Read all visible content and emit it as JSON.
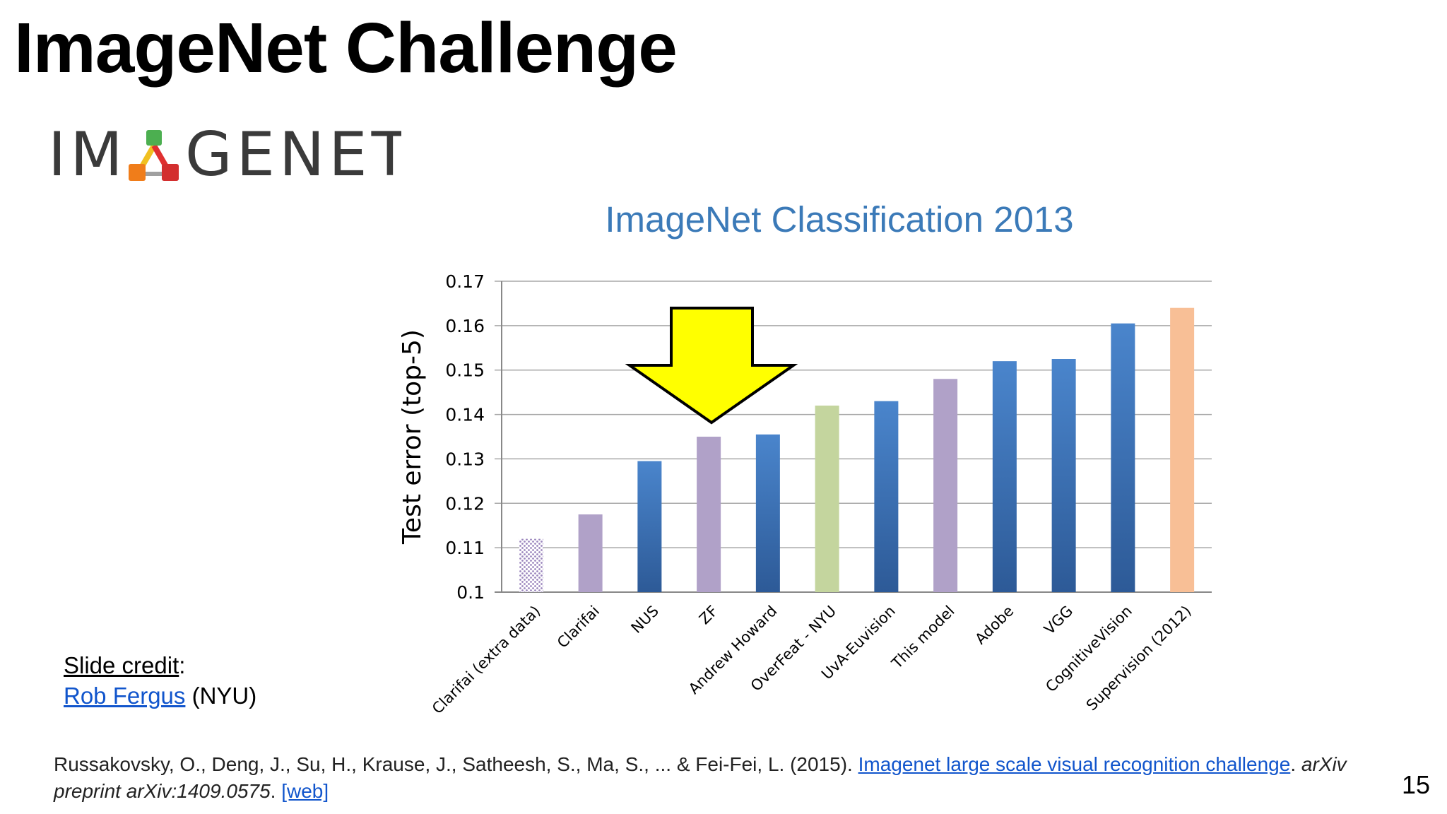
{
  "slide": {
    "title": "ImageNet Challenge",
    "logo_text_left": "IM",
    "logo_text_right": "GENET",
    "page_number": "15"
  },
  "credit": {
    "label": "Slide credit",
    "colon": ":",
    "name": "Rob Fergus",
    "affiliation": " (NYU)"
  },
  "reference": {
    "authors": "Russakovsky, O., Deng, J., Su, H., Krause, J., Satheesh, S., Ma, S., ... & Fei-Fei, L. (2015). ",
    "link_title": "Imagenet large scale visual recognition challenge",
    "after_link": ". ",
    "journal": "arXiv preprint arXiv:1409.0575",
    "after_journal": ". ",
    "web": "[web]"
  },
  "colors": {
    "blue": "#3a70b2",
    "purple": "#b0a1c8",
    "green": "#c4d59e",
    "orange": "#f8bf96",
    "arrow": "#ffff00",
    "title": "#3b7ab8"
  },
  "chart_data": {
    "type": "bar",
    "title": "ImageNet Classification 2013",
    "ylabel": "Test error (top-5)",
    "xlabel": "",
    "ylim": [
      0.1,
      0.17
    ],
    "yticks": [
      "0.1",
      "0.11",
      "0.12",
      "0.13",
      "0.14",
      "0.15",
      "0.16",
      "0.17"
    ],
    "grid": true,
    "categories": [
      "Clarifai (extra data)",
      "Clarifai",
      "NUS",
      "ZF",
      "Andrew Howard",
      "OverFeat - NYU",
      "UvA-Euvision",
      "This model",
      "Adobe",
      "VGG",
      "CognitiveVision",
      "Supervision (2012)"
    ],
    "values": [
      0.112,
      0.1175,
      0.1295,
      0.135,
      0.1355,
      0.142,
      0.143,
      0.148,
      0.152,
      0.1525,
      0.1605,
      0.164
    ],
    "bar_colors": [
      "purple",
      "purple",
      "blue",
      "purple",
      "blue",
      "green",
      "blue",
      "purple",
      "blue",
      "blue",
      "blue",
      "orange"
    ],
    "bar_patterns": [
      "dotted",
      "solid",
      "solid",
      "solid",
      "solid",
      "solid",
      "solid",
      "solid",
      "solid",
      "solid",
      "solid",
      "solid"
    ],
    "annotation": "arrow pointing to ZF"
  }
}
